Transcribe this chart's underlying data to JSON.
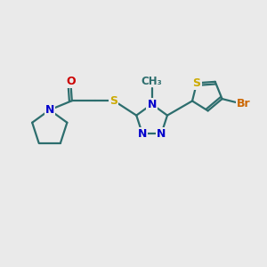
{
  "bg_color": "#eaeaea",
  "bond_color": "#2d6e6e",
  "bond_width": 1.6,
  "atom_colors": {
    "N": "#0000cc",
    "O": "#cc0000",
    "S": "#ccaa00",
    "Br": "#cc6600",
    "C": "#2d6e6e"
  },
  "font_size": 9,
  "fig_size": [
    3.0,
    3.0
  ],
  "dpi": 100
}
